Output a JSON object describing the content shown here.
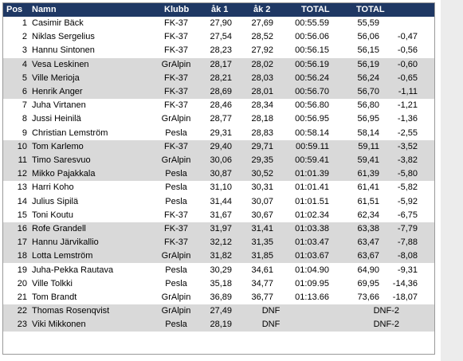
{
  "table": {
    "header": [
      "Pos",
      "Namn",
      "Klubb",
      "åk 1",
      "åk 2",
      "TOTAL",
      "TOTAL"
    ],
    "rows": [
      {
        "pos": 1,
        "name": "Casimir Bäck",
        "club": "FK-37",
        "ak1": "27,90",
        "ak2": "27,69",
        "total": "00:55.59",
        "total2": "55,59"
      },
      {
        "pos": 2,
        "name": "Niklas Sergelius",
        "club": "FK-37",
        "ak1": "27,54",
        "ak2": "28,52",
        "total": "00:56.06",
        "total2": "56,06",
        "diff": "-0,47"
      },
      {
        "pos": 3,
        "name": "Hannu Sintonen",
        "club": "FK-37",
        "ak1": "28,23",
        "ak2": "27,92",
        "total": "00:56.15",
        "total2": "56,15",
        "diff": "-0,56"
      },
      {
        "pos": 4,
        "name": "Vesa Leskinen",
        "club": "GrAlpin",
        "ak1": "28,17",
        "ak2": "28,02",
        "total": "00:56.19",
        "total2": "56,19",
        "diff": "-0,60"
      },
      {
        "pos": 5,
        "name": "Ville Merioja",
        "club": "FK-37",
        "ak1": "28,21",
        "ak2": "28,03",
        "total": "00:56.24",
        "total2": "56,24",
        "diff": "-0,65"
      },
      {
        "pos": 6,
        "name": "Henrik Anger",
        "club": "FK-37",
        "ak1": "28,69",
        "ak2": "28,01",
        "total": "00:56.70",
        "total2": "56,70",
        "diff": "-1,11"
      },
      {
        "pos": 7,
        "name": "Juha Virtanen",
        "club": "FK-37",
        "ak1": "28,46",
        "ak2": "28,34",
        "total": "00:56.80",
        "total2": "56,80",
        "diff": "-1,21"
      },
      {
        "pos": 8,
        "name": "Jussi Heinilä",
        "club": "GrAlpin",
        "ak1": "28,77",
        "ak2": "28,18",
        "total": "00:56.95",
        "total2": "56,95",
        "diff": "-1,36"
      },
      {
        "pos": 9,
        "name": "Christian Lemström",
        "club": "Pesla",
        "ak1": "29,31",
        "ak2": "28,83",
        "total": "00:58.14",
        "total2": "58,14",
        "diff": "-2,55"
      },
      {
        "pos": 10,
        "name": "Tom Karlemo",
        "club": "FK-37",
        "ak1": "29,40",
        "ak2": "29,71",
        "total": "00:59.11",
        "total2": "59,11",
        "diff": "-3,52"
      },
      {
        "pos": 11,
        "name": "Timo Saresvuo",
        "club": "GrAlpin",
        "ak1": "30,06",
        "ak2": "29,35",
        "total": "00:59.41",
        "total2": "59,41",
        "diff": "-3,82"
      },
      {
        "pos": 12,
        "name": "Mikko Pajakkala",
        "club": "Pesla",
        "ak1": "30,87",
        "ak2": "30,52",
        "total": "01:01.39",
        "total2": "61,39",
        "diff": "-5,80"
      },
      {
        "pos": 13,
        "name": "Harri Koho",
        "club": "Pesla",
        "ak1": "31,10",
        "ak2": "30,31",
        "total": "01:01.41",
        "total2": "61,41",
        "diff": "-5,82"
      },
      {
        "pos": 14,
        "name": "Julius Sipilä",
        "club": "Pesla",
        "ak1": "31,44",
        "ak2": "30,07",
        "total": "01:01.51",
        "total2": "61,51",
        "diff": "-5,92"
      },
      {
        "pos": 15,
        "name": "Toni Koutu",
        "club": "FK-37",
        "ak1": "31,67",
        "ak2": "30,67",
        "total": "01:02.34",
        "total2": "62,34",
        "diff": "-6,75"
      },
      {
        "pos": 16,
        "name": "Rofe Grandell",
        "club": "FK-37",
        "ak1": "31,97",
        "ak2": "31,41",
        "total": "01:03.38",
        "total2": "63,38",
        "diff": "-7,79"
      },
      {
        "pos": 17,
        "name": "Hannu Järvikallio",
        "club": "FK-37",
        "ak1": "32,12",
        "ak2": "31,35",
        "total": "01:03.47",
        "total2": "63,47",
        "diff": "-7,88"
      },
      {
        "pos": 18,
        "name": "Lotta Lemström",
        "club": "GrAlpin",
        "ak1": "31,82",
        "ak2": "31,85",
        "total": "01:03.67",
        "total2": "63,67",
        "diff": "-8,08"
      },
      {
        "pos": 19,
        "name": "Juha-Pekka Rautava",
        "club": "Pesla",
        "ak1": "30,29",
        "ak2": "34,61",
        "total": "01:04.90",
        "total2": "64,90",
        "diff": "-9,31"
      },
      {
        "pos": 20,
        "name": "Ville Tolkki",
        "club": "Pesla",
        "ak1": "35,18",
        "ak2": "34,77",
        "total": "01:09.95",
        "total2": "69,95",
        "diff": "-14,36"
      },
      {
        "pos": 21,
        "name": "Tom Brandt",
        "club": "GrAlpin",
        "ak1": "36,89",
        "ak2": "36,77",
        "total": "01:13.66",
        "total2": "73,66",
        "diff": "-18,07"
      },
      {
        "pos": 22,
        "name": "Thomas Rosenqvist",
        "club": "GrAlpin",
        "ak1": "27,49",
        "ak2": "DNF",
        "total2": "DNF-2"
      },
      {
        "pos": 23,
        "name": "Viki Mikkonen",
        "club": "Pesla",
        "ak1": "28,19",
        "ak2": "DNF",
        "total2": "DNF-2"
      }
    ]
  }
}
